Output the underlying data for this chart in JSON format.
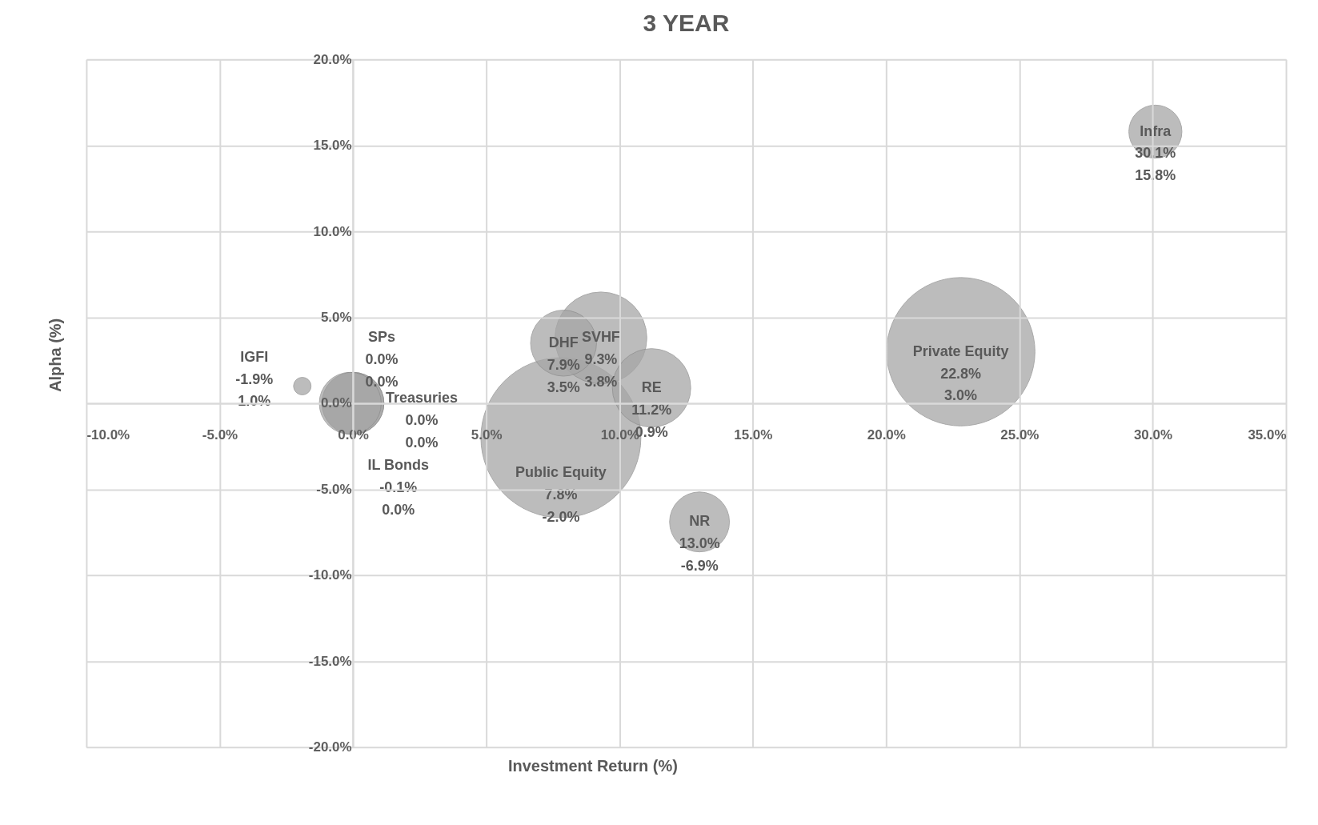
{
  "chart_data": {
    "type": "bubble",
    "title": "3 YEAR",
    "xlabel": "Investment Return (%)",
    "ylabel": "Alpha (%)",
    "xlim": [
      -10,
      35
    ],
    "ylim": [
      -20,
      20
    ],
    "xticks": [
      {
        "value": -10,
        "label": "-10.0%"
      },
      {
        "value": -5,
        "label": "-5.0%"
      },
      {
        "value": 0,
        "label": "0.0%"
      },
      {
        "value": 5,
        "label": "5.0%"
      },
      {
        "value": 10,
        "label": "10.0%"
      },
      {
        "value": 15,
        "label": "15.0%"
      },
      {
        "value": 20,
        "label": "20.0%"
      },
      {
        "value": 25,
        "label": "25.0%"
      },
      {
        "value": 30,
        "label": "30.0%"
      },
      {
        "value": 35,
        "label": "35.0%"
      }
    ],
    "yticks": [
      {
        "value": -20,
        "label": "-20.0%"
      },
      {
        "value": -15,
        "label": "-15.0%"
      },
      {
        "value": -10,
        "label": "-10.0%"
      },
      {
        "value": -5,
        "label": "-5.0%"
      },
      {
        "value": 0,
        "label": "0.0%"
      },
      {
        "value": 5,
        "label": "5.0%"
      },
      {
        "value": 10,
        "label": "10.0%"
      },
      {
        "value": 15,
        "label": "15.0%"
      },
      {
        "value": 20,
        "label": "20.0%"
      }
    ],
    "grid": true,
    "legend": false,
    "series": [
      {
        "name": "IGFI",
        "color": "#a6a6a6",
        "x": [
          -1.9
        ],
        "values": [
          1.0
        ],
        "sizes": [
          0.012
        ],
        "value_labels": [
          "-1.9%\n1.0%"
        ]
      },
      {
        "name": "SPs",
        "color": "#a6a6a6",
        "x": [
          0.0
        ],
        "values": [
          0.0
        ],
        "sizes": [
          0.15
        ],
        "value_labels": [
          "0.0%\n0.0%"
        ]
      },
      {
        "name": "Treasuries",
        "color": "#a6a6a6",
        "x": [
          0.0
        ],
        "values": [
          0.0
        ],
        "sizes": [
          0.15
        ],
        "value_labels": [
          "0.0%\n0.0%"
        ]
      },
      {
        "name": "IL Bonds",
        "color": "#a6a6a6",
        "x": [
          -0.1
        ],
        "values": [
          0.0
        ],
        "sizes": [
          0.15
        ],
        "value_labels": [
          "-0.1%\n0.0%"
        ]
      },
      {
        "name": "Public Equity",
        "color": "#a6a6a6",
        "x": [
          7.8
        ],
        "values": [
          -2.0
        ],
        "sizes": [
          1
        ],
        "value_labels": [
          "7.8%\n-2.0%"
        ]
      },
      {
        "name": "DHF",
        "color": "#a6a6a6",
        "x": [
          7.9
        ],
        "values": [
          3.5
        ],
        "sizes": [
          0.17
        ],
        "value_labels": [
          "7.9%\n3.5%"
        ]
      },
      {
        "name": "SVHF",
        "color": "#a6a6a6",
        "x": [
          9.3
        ],
        "values": [
          3.8
        ],
        "sizes": [
          0.33
        ],
        "value_labels": [
          "9.3%\n3.8%"
        ]
      },
      {
        "name": "RE",
        "color": "#a6a6a6",
        "x": [
          11.2
        ],
        "values": [
          0.9
        ],
        "sizes": [
          0.24
        ],
        "value_labels": [
          "11.2%\n0.9%"
        ]
      },
      {
        "name": "NR",
        "color": "#a6a6a6",
        "x": [
          13.0
        ],
        "values": [
          -6.9
        ],
        "sizes": [
          0.14
        ],
        "value_labels": [
          "13.0%\n-6.9%"
        ]
      },
      {
        "name": "Private Equity",
        "color": "#a6a6a6",
        "x": [
          22.8
        ],
        "values": [
          3.0
        ],
        "sizes": [
          0.86
        ],
        "value_labels": [
          "22.8%\n3.0%"
        ]
      },
      {
        "name": "Infra",
        "color": "#a6a6a6",
        "x": [
          30.1
        ],
        "values": [
          15.8
        ],
        "sizes": [
          0.11
        ],
        "value_labels": [
          "30.1%\n15.8%"
        ]
      }
    ]
  }
}
